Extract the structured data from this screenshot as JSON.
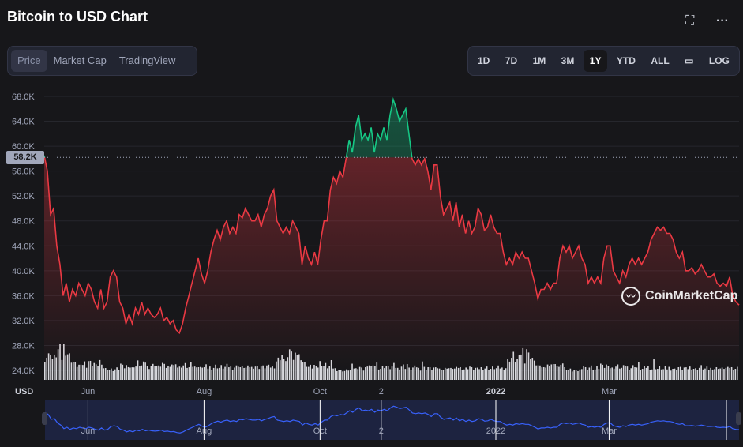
{
  "header": {
    "title": "Bitcoin to USD Chart",
    "fullscreen_icon": "expand-icon",
    "more_icon": "ellipsis-icon"
  },
  "view_tabs": [
    {
      "label": "Price",
      "active": true
    },
    {
      "label": "Market Cap"
    },
    {
      "label": "TradingView"
    }
  ],
  "range_tabs": [
    {
      "label": "1D"
    },
    {
      "label": "7D"
    },
    {
      "label": "1M"
    },
    {
      "label": "3M"
    },
    {
      "label": "1Y",
      "active": true
    },
    {
      "label": "YTD"
    },
    {
      "label": "ALL"
    },
    {
      "icon": "calendar-icon"
    },
    {
      "label": "LOG"
    }
  ],
  "watermark": "CoinMarketCap",
  "colors": {
    "up": "#16c784",
    "down": "#ea3943",
    "nav": "#3861fb"
  },
  "chart_data": {
    "type": "line",
    "title": "Bitcoin to USD Chart",
    "ylabel": "USD",
    "current_price_label": "58.2K",
    "reference_price": 58.2,
    "ylim": [
      24,
      68
    ],
    "yticks": [
      "24.0K",
      "28.0K",
      "32.0K",
      "36.0K",
      "40.0K",
      "44.0K",
      "48.0K",
      "52.0K",
      "56.0K",
      "60.0K",
      "64.0K",
      "68.0K"
    ],
    "xticks": [
      {
        "label": "Jun",
        "pos": 0.063
      },
      {
        "label": "Aug",
        "pos": 0.23
      },
      {
        "label": "Oct",
        "pos": 0.397
      },
      {
        "label": "2",
        "pos": 0.485
      },
      {
        "label": "2022",
        "pos": 0.65,
        "bold": true
      },
      {
        "label": "Mar",
        "pos": 0.813
      }
    ],
    "price_k": [
      58.5,
      56,
      49,
      50,
      44,
      41,
      36,
      38,
      35,
      37,
      36,
      38,
      37,
      36,
      38,
      37,
      35,
      34,
      37,
      34,
      35,
      39,
      40,
      39,
      35,
      34,
      31.5,
      33,
      31.5,
      34,
      33,
      35,
      33,
      34,
      33,
      32.5,
      33,
      34,
      32,
      32.5,
      31.5,
      32,
      30.5,
      30,
      31.5,
      34,
      36,
      38,
      40,
      42,
      39.5,
      38,
      40,
      43,
      45,
      46.5,
      45,
      47,
      48,
      46,
      47,
      46,
      49,
      48.5,
      50,
      49,
      48,
      48,
      49,
      47,
      49,
      50,
      52,
      53,
      48,
      47,
      46,
      47,
      46,
      48,
      47,
      46,
      41,
      44,
      42,
      41,
      43,
      41,
      45,
      48,
      48,
      53,
      55,
      54,
      56,
      55,
      58,
      61,
      59,
      63,
      65,
      61,
      62,
      61,
      63,
      59,
      62,
      61,
      63,
      61,
      65,
      67.5,
      66,
      64,
      65,
      66,
      62,
      58,
      57,
      58,
      57,
      58,
      56,
      53,
      57,
      57,
      52,
      49,
      50,
      51,
      48,
      51,
      47,
      49,
      46,
      48,
      46,
      47,
      50,
      49,
      46.5,
      47,
      49,
      47,
      46,
      46,
      43,
      41,
      42,
      41,
      43,
      42,
      43,
      42,
      42,
      40,
      38,
      35.5,
      37,
      37,
      38,
      37,
      38,
      38,
      42,
      44,
      43,
      44,
      42,
      43,
      44,
      42,
      41,
      38,
      39,
      38,
      39,
      38,
      42,
      44,
      44,
      40,
      39,
      38,
      40,
      39,
      41,
      42,
      41,
      42,
      41,
      42,
      43,
      45,
      46,
      47,
      46.5,
      47,
      46,
      46,
      45,
      43,
      42,
      43,
      40,
      40,
      40.5,
      39.5,
      40,
      41,
      40,
      39,
      39,
      39.5,
      38,
      37.5,
      38,
      37.5,
      39,
      36,
      35,
      34.5
    ],
    "volume_rel": [
      0.6,
      0.65,
      0.7,
      0.8,
      0.6,
      0.65,
      0.7,
      0.85,
      0.95,
      0.6,
      1.0,
      0.8,
      0.75,
      0.7,
      0.55,
      0.5,
      0.45,
      0.4,
      0.42,
      0.38,
      0.45,
      0.5,
      0.4,
      0.55,
      0.5,
      0.45,
      0.48,
      0.4,
      0.42,
      0.55,
      0.38,
      0.35,
      0.32,
      0.33,
      0.3,
      0.3,
      0.28,
      0.3,
      0.32,
      0.3,
      0.45,
      0.38,
      0.35,
      0.4,
      0.42,
      0.36,
      0.33,
      0.4,
      0.38,
      0.5,
      0.42,
      0.4,
      0.46,
      0.52,
      0.38,
      0.36,
      0.4,
      0.42,
      0.44,
      0.39,
      0.37,
      0.41,
      0.47,
      0.4,
      0.36,
      0.38,
      0.43,
      0.45,
      0.39,
      0.5,
      0.35,
      0.34,
      0.38,
      0.4,
      0.42,
      0.36,
      0.34,
      0.6,
      0.38,
      0.35,
      0.4,
      0.36,
      0.33,
      0.38,
      0.35,
      0.39,
      0.34,
      0.36,
      0.33,
      0.35,
      0.4,
      0.37,
      0.34,
      0.38,
      0.35,
      0.36,
      0.4,
      0.38,
      0.36,
      0.34,
      0.36,
      0.38,
      0.42,
      0.36,
      0.35,
      0.37,
      0.34,
      0.36,
      0.38,
      0.35,
      0.37,
      0.39,
      0.36,
      0.35,
      0.38,
      0.37,
      0.36,
      0.4,
      0.38,
      0.37,
      0.36,
      0.38
    ]
  },
  "navigator": {
    "labels": [
      "Jun",
      "Aug",
      "Oct",
      "2",
      "2022",
      "Mar"
    ]
  }
}
